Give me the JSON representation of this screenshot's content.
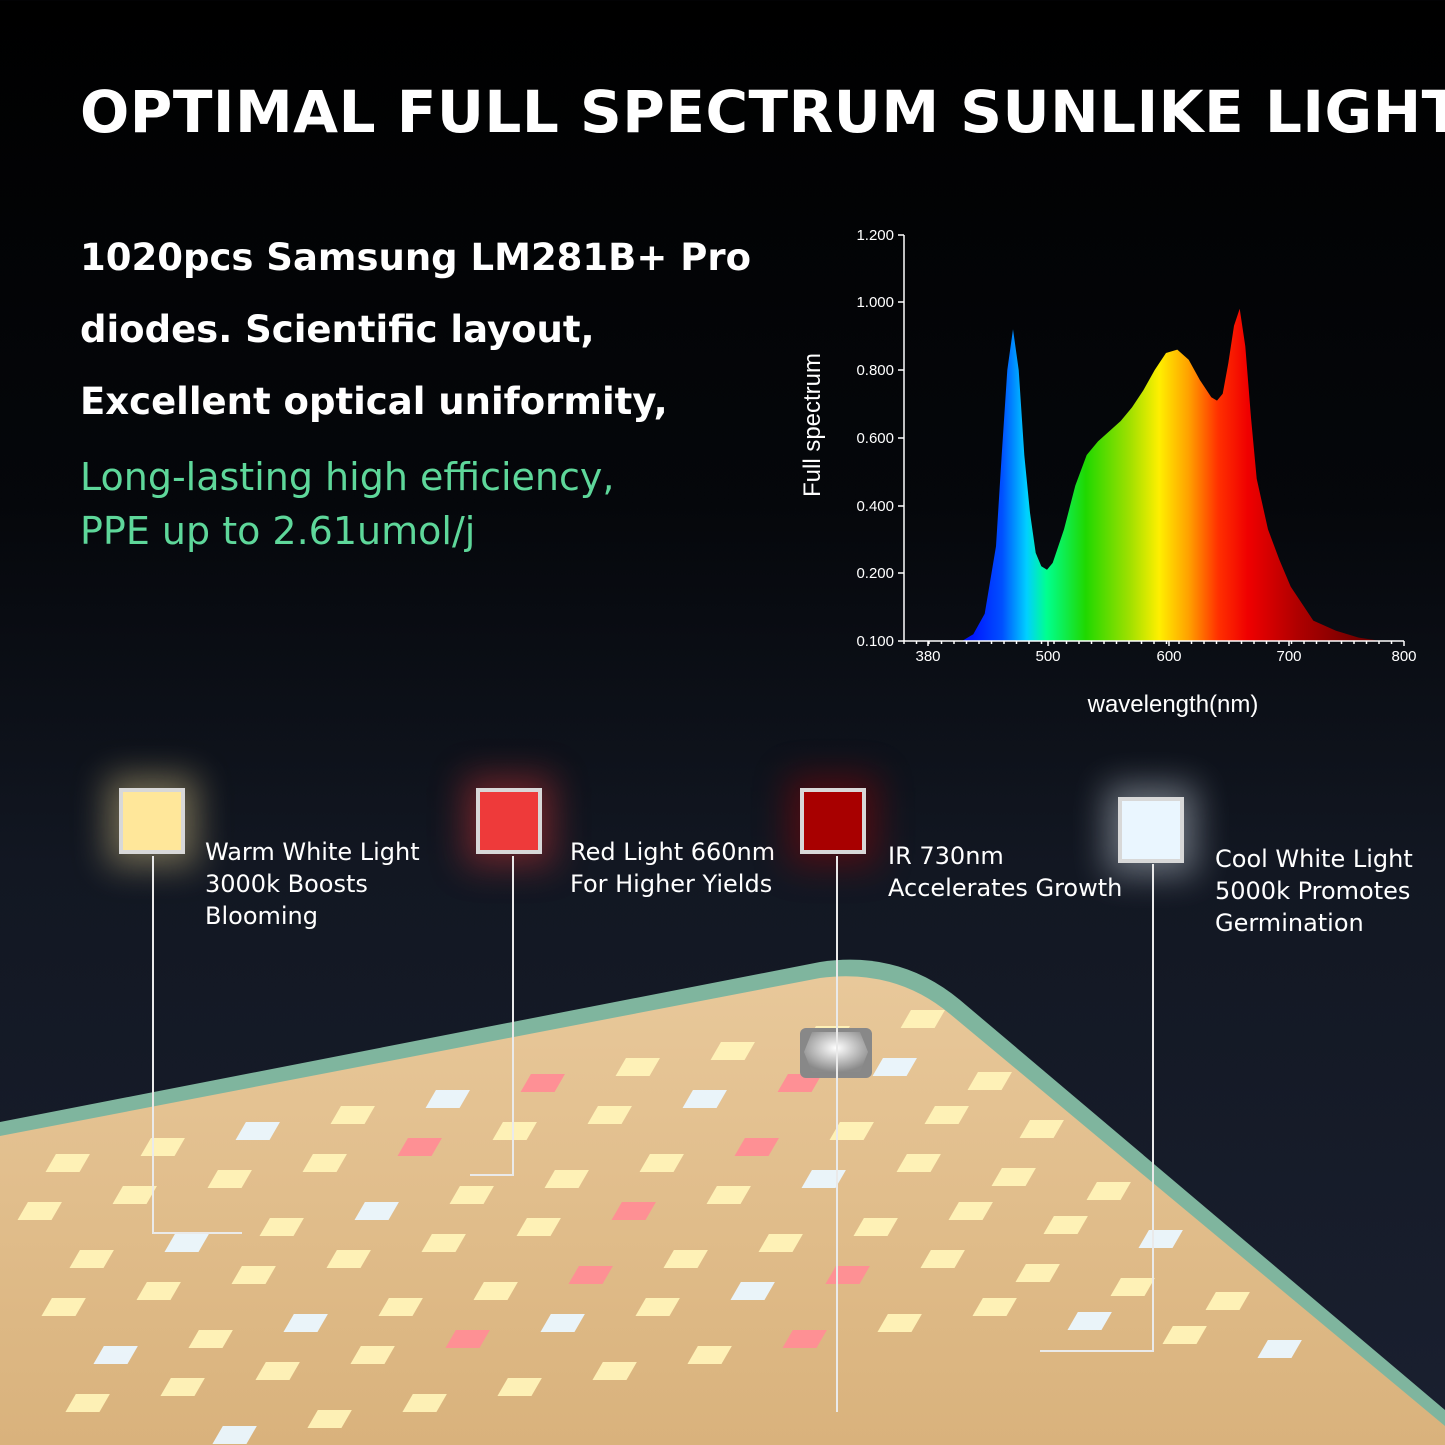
{
  "title": "OPTIMAL FULL SPECTRUM SUNLIKE LIGHT",
  "description": {
    "lines": [
      "1020pcs Samsung LM281B+ Pro",
      "diodes. Scientific layout,",
      "Excellent optical uniformity,"
    ],
    "highlight": [
      "Long-lasting high efficiency,",
      "PPE up to 2.61umol/j"
    ],
    "highlight_color": "#5ed79a"
  },
  "chart_data": {
    "type": "area",
    "ylabel": "Full spectrum",
    "xlabel": "wavelength(nm)",
    "x_ticks": [
      "380",
      "500",
      "600",
      "700",
      "800"
    ],
    "y_ticks": [
      "0.100",
      "0.200",
      "0.400",
      "0.600",
      "0.800",
      "1.000",
      "1.200"
    ],
    "xlim": [
      370,
      800
    ],
    "ylim": [
      0.1,
      1.2
    ],
    "grid": false,
    "series": [
      {
        "x": [
          410,
          420,
          430,
          440,
          445,
          450,
          455,
          460,
          465,
          470,
          475,
          480,
          485,
          490,
          500,
          510,
          520,
          530,
          540,
          550,
          560,
          570,
          580,
          590,
          600,
          610,
          620,
          630,
          635,
          640,
          645,
          650,
          655,
          660,
          665,
          670,
          680,
          690,
          700,
          720,
          740,
          760,
          780
        ],
        "y": [
          0.1,
          0.11,
          0.14,
          0.28,
          0.55,
          0.8,
          0.92,
          0.8,
          0.55,
          0.38,
          0.26,
          0.22,
          0.21,
          0.23,
          0.33,
          0.46,
          0.55,
          0.59,
          0.62,
          0.65,
          0.69,
          0.74,
          0.8,
          0.85,
          0.86,
          0.83,
          0.77,
          0.72,
          0.71,
          0.73,
          0.82,
          0.93,
          0.98,
          0.87,
          0.66,
          0.48,
          0.33,
          0.24,
          0.18,
          0.13,
          0.115,
          0.105,
          0.1
        ]
      }
    ]
  },
  "legend": [
    {
      "lines": [
        "Warm White Light",
        "3000k Boosts",
        "Blooming"
      ],
      "color": "#ffe79a"
    },
    {
      "lines": [
        "Red Light 660nm",
        "For Higher Yields"
      ],
      "color": "#ee3a3a"
    },
    {
      "lines": [
        "IR 730nm",
        "Accelerates Growth"
      ],
      "color": "#a80000"
    },
    {
      "lines": [
        "Cool White Light",
        "5000k Promotes",
        "Germination"
      ],
      "color": "#eaf6ff"
    }
  ]
}
